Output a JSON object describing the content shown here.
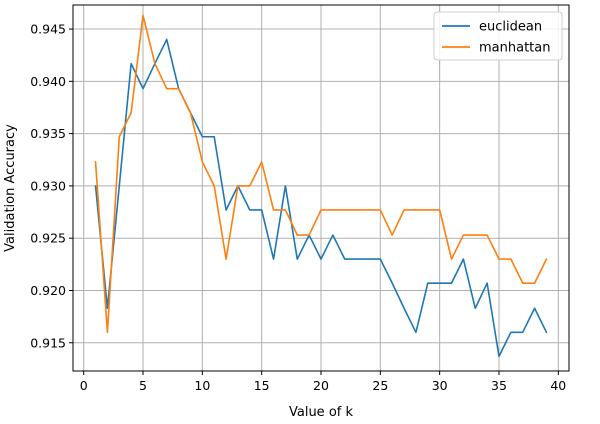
{
  "chart_data": {
    "type": "line",
    "title": "",
    "xlabel": "Value of k",
    "ylabel": "Validation Accuracy",
    "xlim": [
      -0.9,
      40.9
    ],
    "ylim": [
      0.9123,
      0.9473
    ],
    "x_ticks": [
      0,
      5,
      10,
      15,
      20,
      25,
      30,
      35,
      40
    ],
    "y_ticks": [
      0.915,
      0.92,
      0.925,
      0.93,
      0.935,
      0.94,
      0.945
    ],
    "y_tick_labels": [
      "0.915",
      "0.920",
      "0.925",
      "0.930",
      "0.935",
      "0.940",
      "0.945"
    ],
    "grid": true,
    "legend_position": "top-right",
    "x": [
      1,
      2,
      3,
      4,
      5,
      6,
      7,
      8,
      9,
      10,
      11,
      12,
      13,
      14,
      15,
      16,
      17,
      18,
      19,
      20,
      21,
      22,
      23,
      24,
      25,
      26,
      27,
      28,
      29,
      30,
      31,
      32,
      33,
      34,
      35,
      36,
      37,
      38,
      39
    ],
    "series": [
      {
        "name": "euclidean",
        "color": "#1f77b4",
        "values": [
          0.93,
          0.9183,
          0.93,
          0.9417,
          0.9393,
          0.9417,
          0.944,
          0.9393,
          0.937,
          0.9347,
          0.9347,
          0.9277,
          0.93,
          0.9277,
          0.9277,
          0.923,
          0.93,
          0.923,
          0.9253,
          0.923,
          0.9253,
          0.923,
          0.923,
          0.923,
          0.923,
          0.9207,
          0.9183,
          0.916,
          0.9207,
          0.9207,
          0.9207,
          0.923,
          0.9183,
          0.9207,
          0.9137,
          0.916,
          0.916,
          0.9183,
          0.916
        ]
      },
      {
        "name": "manhattan",
        "color": "#ff7f0e",
        "values": [
          0.9323,
          0.916,
          0.9347,
          0.937,
          0.9463,
          0.9417,
          0.9393,
          0.9393,
          0.937,
          0.9323,
          0.93,
          0.923,
          0.93,
          0.93,
          0.9323,
          0.9277,
          0.9277,
          0.9253,
          0.9253,
          0.9277,
          0.9277,
          0.9277,
          0.9277,
          0.9277,
          0.9277,
          0.9253,
          0.9277,
          0.9277,
          0.9277,
          0.9277,
          0.923,
          0.9253,
          0.9253,
          0.9253,
          0.923,
          0.923,
          0.9207,
          0.9207,
          0.923
        ]
      }
    ]
  }
}
